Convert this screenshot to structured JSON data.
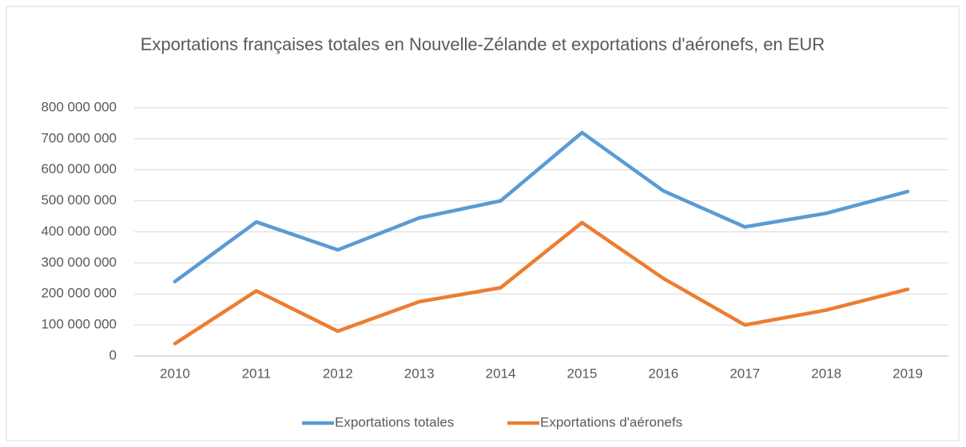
{
  "chart_data": {
    "type": "line",
    "title": "Exportations françaises totales en Nouvelle-Zélande et exportations d'aéronefs, en EUR",
    "categories": [
      "2010",
      "2011",
      "2012",
      "2013",
      "2014",
      "2015",
      "2016",
      "2017",
      "2018",
      "2019"
    ],
    "series": [
      {
        "name": "Exportations totales",
        "color": "#5b9bd5",
        "values": [
          240000000,
          432000000,
          342000000,
          445000000,
          500000000,
          720000000,
          532000000,
          416000000,
          460000000,
          530000000
        ]
      },
      {
        "name": "Exportations d'aéronefs",
        "color": "#ed7d31",
        "values": [
          40000000,
          210000000,
          80000000,
          175000000,
          220000000,
          430000000,
          250000000,
          100000000,
          148000000,
          215000000
        ]
      }
    ],
    "ylim": [
      0,
      800000000
    ],
    "yticks": [
      0,
      {
        "value": 100000000,
        "label": "100 000 000"
      },
      {
        "value": 200000000,
        "label": "200 000 000"
      },
      {
        "value": 300000000,
        "label": "300 000 000"
      },
      {
        "value": 400000000,
        "label": "400 000 000"
      },
      {
        "value": 500000000,
        "label": "500 000 000"
      },
      {
        "value": 600000000,
        "label": "600 000 000"
      },
      {
        "value": 700000000,
        "label": "700 000 000"
      },
      {
        "value": 800000000,
        "label": "800 000 000"
      }
    ],
    "grid": true,
    "legend": "bottom"
  }
}
